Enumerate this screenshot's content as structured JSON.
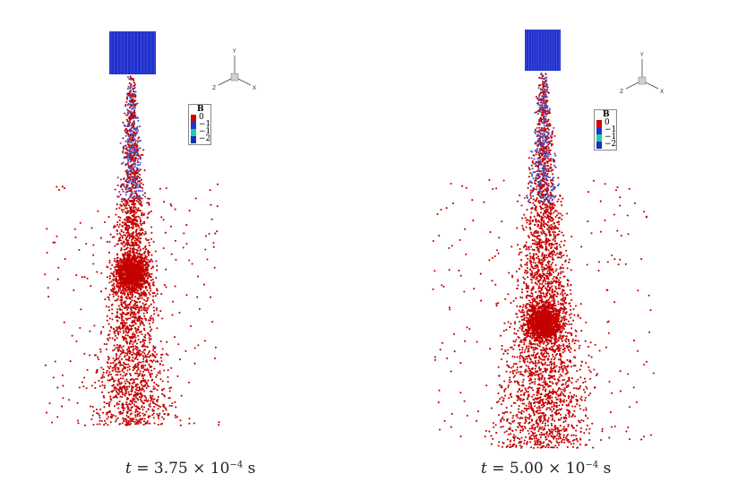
{
  "panels": [
    {
      "caption": {
        "var": "t",
        "value": "= 3.75 × 10",
        "exponent": "−4",
        "unit": " s"
      },
      "legend": {
        "title": "B",
        "entries": [
          {
            "label": "0",
            "color": "#d40000"
          },
          {
            "label": "−1",
            "color": "#2233cc"
          },
          {
            "label": "−1",
            "color": "#22ccaa"
          },
          {
            "label": "−2",
            "color": "#1133bb"
          }
        ]
      },
      "axes": {
        "x": "X",
        "y": "Y",
        "z": "Z"
      }
    },
    {
      "caption": {
        "var": "t",
        "value": "= 5.00 × 10",
        "exponent": "−4",
        "unit": " s"
      },
      "legend": {
        "title": "B",
        "entries": [
          {
            "label": "0",
            "color": "#d40000"
          },
          {
            "label": "−1",
            "color": "#2233cc"
          },
          {
            "label": "−1",
            "color": "#22ccaa"
          },
          {
            "label": "−2",
            "color": "#1133bb"
          }
        ]
      },
      "axes": {
        "x": "X",
        "y": "Y",
        "z": "Z"
      }
    }
  ],
  "colors": {
    "particle": "#c40000",
    "nozzle": "#2030c8",
    "particle_blue": "#4a55c0"
  }
}
